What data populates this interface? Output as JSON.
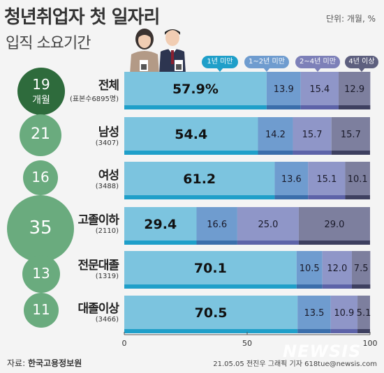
{
  "header": {
    "title": "청년취업자 첫 일자리",
    "subtitle": "입직 소요기간",
    "unit": "단위: 개월, %"
  },
  "legend": [
    "1년 미만",
    "1~2년 미만",
    "2~4년 미만",
    "4년 이상"
  ],
  "colors": {
    "seg1": "#7cc4df",
    "seg2": "#6f9ccf",
    "seg3": "#8f96c8",
    "seg4": "#7d7f9e",
    "seg1_bottom": "#1f9fc9",
    "seg2_bottom": "#3b6eab",
    "seg3_bottom": "#5d63a8",
    "seg4_bottom": "#3e4060",
    "circle": "#6aab7e",
    "circle_total": "#2e6b3c"
  },
  "rows": [
    {
      "name": "전체",
      "sample": "(표본수6895명)",
      "months": "19",
      "months_unit": "개월"
    },
    {
      "name": "남성",
      "sample": "(3407)",
      "months": "21"
    },
    {
      "name": "여성",
      "sample": "(3488)",
      "months": "16"
    },
    {
      "name": "고졸이하",
      "sample": "(2110)",
      "months": "35"
    },
    {
      "name": "전문대졸",
      "sample": "(1319)",
      "months": "13"
    },
    {
      "name": "대졸이상",
      "sample": "(3466)",
      "months": "11"
    }
  ],
  "chart_data": {
    "type": "bar",
    "orientation": "horizontal",
    "stacked": true,
    "categories": [
      "전체",
      "남성",
      "여성",
      "고졸이하",
      "전문대졸",
      "대졸이상"
    ],
    "series": [
      {
        "name": "1년 미만",
        "values": [
          57.9,
          54.4,
          61.2,
          29.4,
          70.1,
          70.5
        ]
      },
      {
        "name": "1~2년 미만",
        "values": [
          13.9,
          14.2,
          13.6,
          16.6,
          10.5,
          13.5
        ]
      },
      {
        "name": "2~4년 미만",
        "values": [
          15.4,
          15.7,
          15.1,
          25.0,
          12.0,
          10.9
        ]
      },
      {
        "name": "4년 이상",
        "values": [
          12.9,
          15.7,
          10.1,
          29.0,
          7.5,
          5.1
        ]
      }
    ],
    "value_labels": [
      [
        "57.9%",
        "13.9",
        "15.4",
        "12.9"
      ],
      [
        "54.4",
        "14.2",
        "15.7",
        "15.7"
      ],
      [
        "61.2",
        "13.6",
        "15.1",
        "10.1"
      ],
      [
        "29.4",
        "16.6",
        "25.0",
        "29.0"
      ],
      [
        "70.1",
        "10.5",
        "12.0",
        "7.5"
      ],
      [
        "70.5",
        "13.5",
        "10.9",
        "5.1"
      ]
    ],
    "xlim": [
      0,
      100
    ],
    "xticks": [
      "0",
      "50",
      "100"
    ],
    "legend_position": "top"
  },
  "footer": {
    "source_label": "자료:",
    "source": "한국고용정보원",
    "credit": "21.05.05 전진우 그래픽 기자 618tue@newsis.com",
    "watermark": "NEWSIS"
  }
}
